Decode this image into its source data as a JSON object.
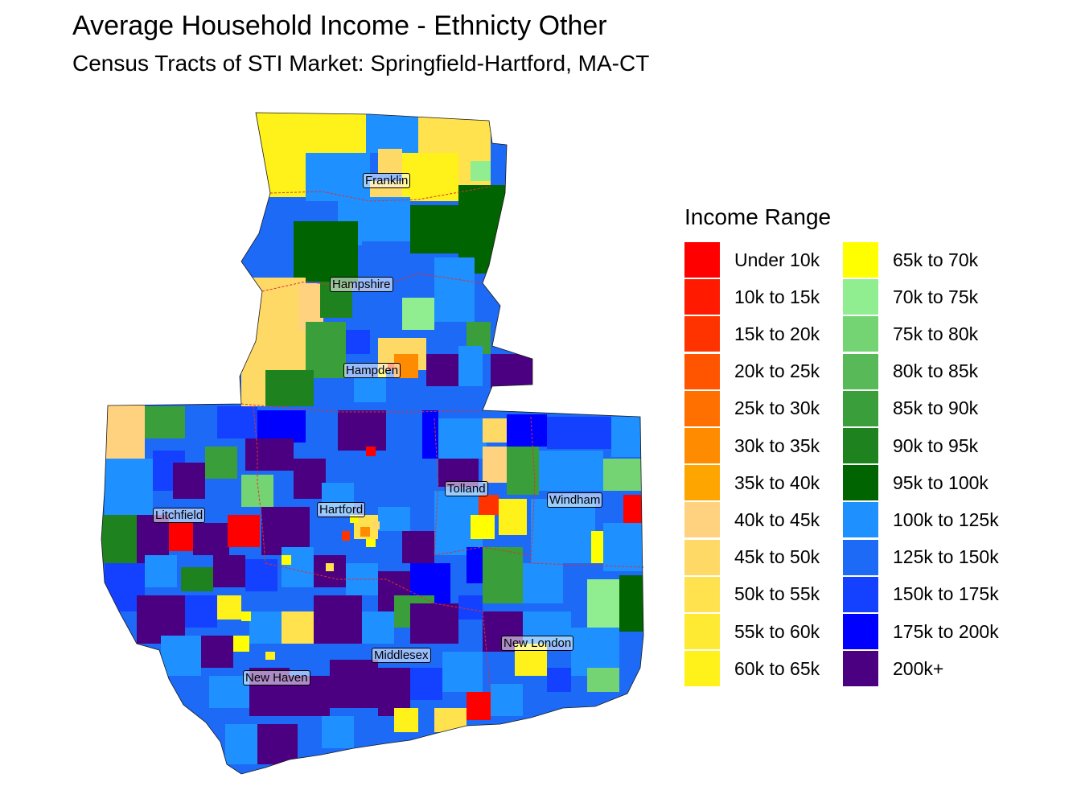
{
  "title": "Average Household Income - Ethnicty Other",
  "subtitle": "Census Tracts of STI Market: Springfield-Hartford, MA-CT",
  "legend": {
    "title": "Income Range",
    "items": [
      {
        "label": "Under 10k",
        "color": "#FF0000"
      },
      {
        "label": "10k to 15k",
        "color": "#FF1A00"
      },
      {
        "label": "15k to 20k",
        "color": "#FF3300"
      },
      {
        "label": "20k to 25k",
        "color": "#FF5500"
      },
      {
        "label": "25k to 30k",
        "color": "#FF7000"
      },
      {
        "label": "30k to 35k",
        "color": "#FF8C00"
      },
      {
        "label": "35k to 40k",
        "color": "#FFA500"
      },
      {
        "label": "40k to 45k",
        "color": "#FFD27F"
      },
      {
        "label": "45k to 50k",
        "color": "#FFD966"
      },
      {
        "label": "50k to 55k",
        "color": "#FFE24D"
      },
      {
        "label": "55k to 60k",
        "color": "#FFEA33"
      },
      {
        "label": "60k to 65k",
        "color": "#FFF21A"
      },
      {
        "label": "65k to 70k",
        "color": "#FFFF00"
      },
      {
        "label": "70k to 75k",
        "color": "#90EE90"
      },
      {
        "label": "75k to 80k",
        "color": "#74D474"
      },
      {
        "label": "80k to 85k",
        "color": "#57B957"
      },
      {
        "label": "85k to 90k",
        "color": "#3A9E3A"
      },
      {
        "label": "90k to 95k",
        "color": "#1E821E"
      },
      {
        "label": "95k to 100k",
        "color": "#006400"
      },
      {
        "label": "100k to 125k",
        "color": "#1E90FF"
      },
      {
        "label": "125k to 150k",
        "color": "#1C6AF5"
      },
      {
        "label": "150k to 175k",
        "color": "#1440FF"
      },
      {
        "label": "175k to 200k",
        "color": "#0000FF"
      },
      {
        "label": "200k+",
        "color": "#4B0082"
      }
    ]
  },
  "counties": [
    {
      "name": "Franklin"
    },
    {
      "name": "Hampshire"
    },
    {
      "name": "Hampden"
    },
    {
      "name": "Tolland"
    },
    {
      "name": "Windham"
    },
    {
      "name": "Litchfield"
    },
    {
      "name": "Hartford"
    },
    {
      "name": "New London"
    },
    {
      "name": "Middlesex"
    },
    {
      "name": "New Haven"
    }
  ]
}
